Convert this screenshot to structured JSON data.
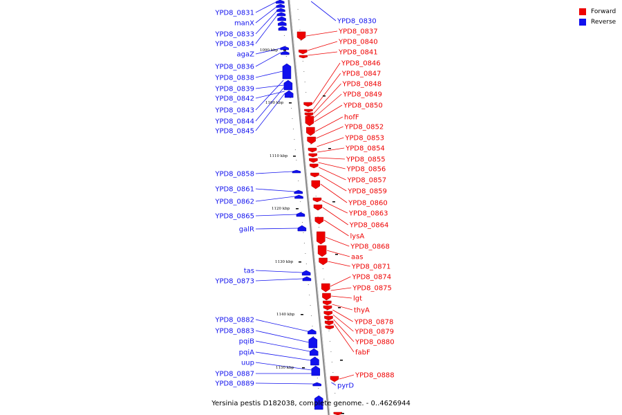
{
  "colors": {
    "forward": "#ee0000",
    "reverse": "#1111ee",
    "backbone": "#888888"
  },
  "legend": [
    {
      "label": "Forward",
      "color": "#ee0000"
    },
    {
      "label": "Reverse",
      "color": "#1111ee"
    }
  ],
  "caption": "Yersinia pestis D182038, complete genome. - 0..4626944",
  "ticks": [
    "1090 kbp",
    "1100 kbp",
    "1110 kbp",
    "1120 kbp",
    "1130 kbp",
    "1140 kbp",
    "1150 kbp"
  ],
  "reverse_genes": [
    "YPD8_0831",
    "manX",
    "YPD8_0833",
    "YPD8_0834",
    "agaZ",
    "YPD8_0836",
    "YPD8_0838",
    "YPD8_0839",
    "YPD8_0842",
    "YPD8_0843",
    "YPD8_0844",
    "YPD8_0845",
    "YPD8_0858",
    "YPD8_0861",
    "YPD8_0862",
    "YPD8_0865",
    "galR",
    "tas",
    "YPD8_0873",
    "YPD8_0882",
    "YPD8_0883",
    "pqiB",
    "pqiA",
    "uup",
    "YPD8_0887",
    "YPD8_0889"
  ],
  "reverse_right_genes": [
    "YPD8_0830",
    "pyrD"
  ],
  "forward_genes": [
    "YPD8_0837",
    "YPD8_0840",
    "YPD8_0841",
    "YPD8_0846",
    "YPD8_0847",
    "YPD8_0848",
    "YPD8_0849",
    "YPD8_0850",
    "hofF",
    "YPD8_0852",
    "YPD8_0853",
    "YPD8_0854",
    "YPD8_0855",
    "YPD8_0856",
    "YPD8_0857",
    "YPD8_0859",
    "YPD8_0860",
    "YPD8_0863",
    "YPD8_0864",
    "lysA",
    "YPD8_0868",
    "aas",
    "YPD8_0871",
    "YPD8_0874",
    "YPD8_0875",
    "lgt",
    "thyA",
    "YPD8_0878",
    "YPD8_0879",
    "YPD8_0880",
    "fabF",
    "YPD8_0888"
  ]
}
